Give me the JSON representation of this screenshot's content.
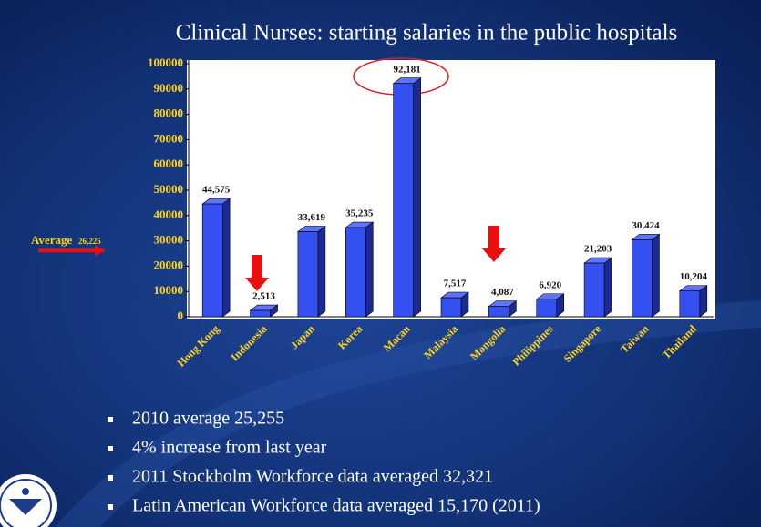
{
  "chart_data": {
    "type": "bar",
    "title": "Clinical Nurses: starting salaries in the public hospitals",
    "categories": [
      "Hong Kong",
      "Indonesia",
      "Japan",
      "Korea",
      "Macau",
      "Malaysia",
      "Mongolia",
      "Philippines",
      "Singapore",
      "Taiwan",
      "Thailand"
    ],
    "values": [
      44575,
      2513,
      33619,
      35235,
      92181,
      7517,
      4087,
      6920,
      21203,
      30424,
      10204
    ],
    "value_labels": [
      "44,575",
      "2,513",
      "33,619",
      "35,235",
      "92,181",
      "7,517",
      "4,087",
      "6,920",
      "21,203",
      "30,424",
      "10,204"
    ],
    "color": "#3550f0",
    "ylim": [
      0,
      100000
    ],
    "yticks": [
      0,
      10000,
      20000,
      30000,
      40000,
      50000,
      60000,
      70000,
      80000,
      90000,
      100000
    ],
    "average": {
      "text": "Average",
      "value": 26225,
      "label": "26,225"
    },
    "notes": [
      "2010 average 25,255",
      "4% increase from last year",
      "2011 Stockholm Workforce data averaged 32,321",
      "Latin American Workforce data averaged 15,170 (2011)"
    ]
  }
}
